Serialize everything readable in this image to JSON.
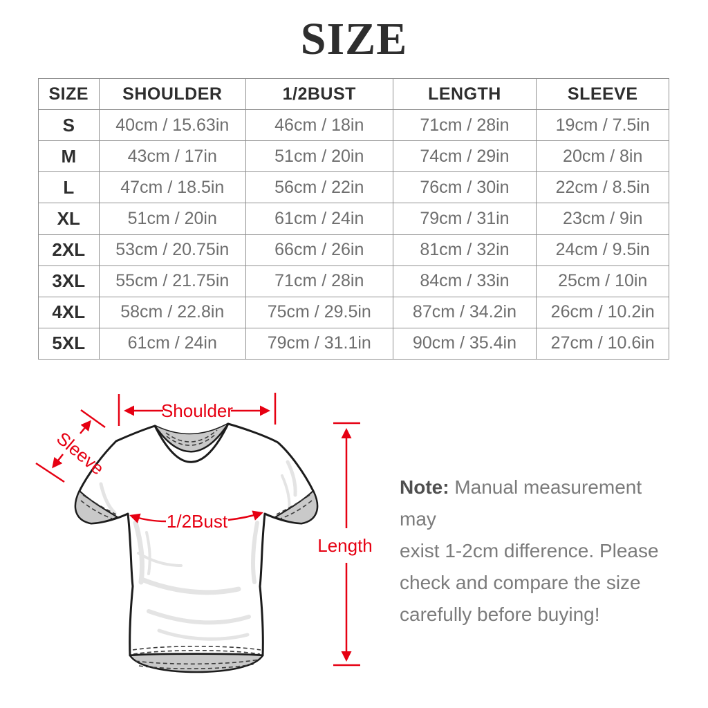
{
  "title": "SIZE",
  "colors": {
    "accent": "#e60012",
    "heading-dark": "#2e2e2e",
    "value-gray": "#6e6e6e",
    "note-gray": "#7b7b7b",
    "note-dark": "#4f4f4f"
  },
  "table": {
    "headers": [
      "SIZE",
      "SHOULDER",
      "1/2BUST",
      "LENGTH",
      "SLEEVE"
    ],
    "rows": [
      [
        "S",
        "40cm / 15.63in",
        "46cm / 18in",
        "71cm / 28in",
        "19cm / 7.5in"
      ],
      [
        "M",
        "43cm / 17in",
        "51cm / 20in",
        "74cm / 29in",
        "20cm / 8in"
      ],
      [
        "L",
        "47cm / 18.5in",
        "56cm / 22in",
        "76cm / 30in",
        "22cm / 8.5in"
      ],
      [
        "XL",
        "51cm / 20in",
        "61cm / 24in",
        "79cm / 31in",
        "23cm / 9in"
      ],
      [
        "2XL",
        "53cm / 20.75in",
        "66cm / 26in",
        "81cm / 32in",
        "24cm / 9.5in"
      ],
      [
        "3XL",
        "55cm / 21.75in",
        "71cm / 28in",
        "84cm / 33in",
        "25cm / 10in"
      ],
      [
        "4XL",
        "58cm / 22.8in",
        "75cm / 29.5in",
        "87cm / 34.2in",
        "26cm / 10.2in"
      ],
      [
        "5XL",
        "61cm / 24in",
        "79cm / 31.1in",
        "90cm / 35.4in",
        "27cm / 10.6in"
      ]
    ]
  },
  "diagram": {
    "labels": {
      "shoulder": "Shoulder",
      "sleeve": "Sleeve",
      "bust": "1/2Bust",
      "length": "Length"
    }
  },
  "note": {
    "label": "Note:",
    "lines": [
      "Manual measurement may",
      "exist 1-2cm difference. Please",
      "check and compare the size",
      "carefully before buying!"
    ]
  }
}
